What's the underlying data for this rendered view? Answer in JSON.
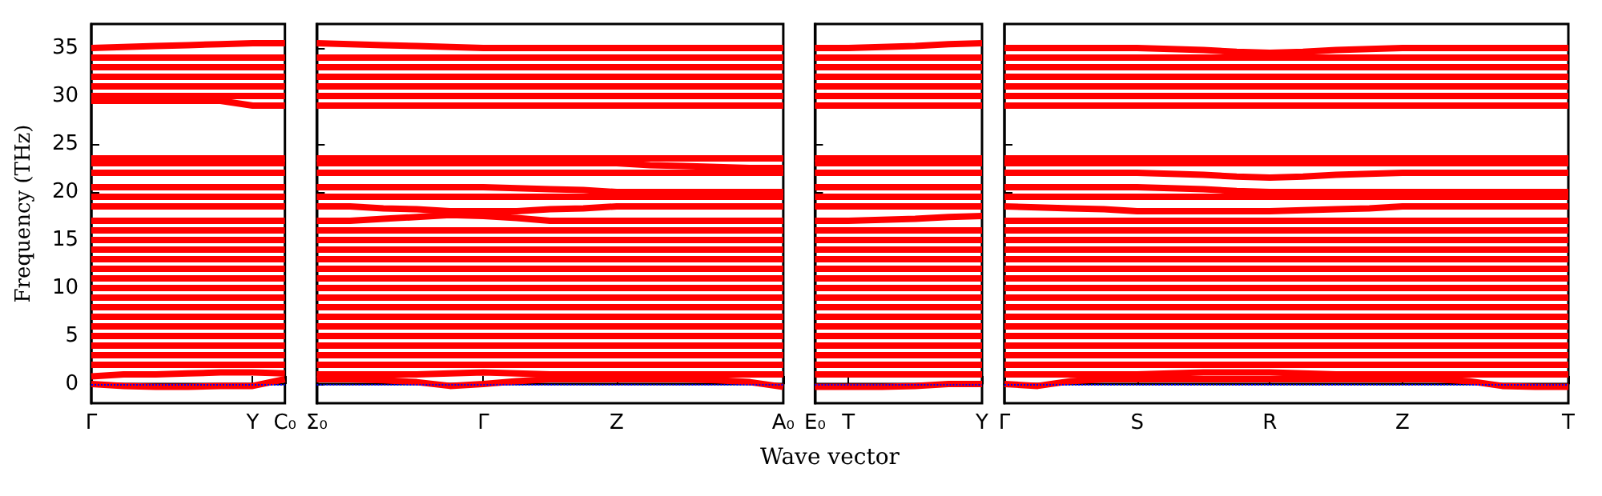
{
  "chart_data": [
    {
      "type": "line",
      "ylabel": "Frequency (THz)",
      "categories": [
        "Γ",
        null,
        null,
        null,
        null,
        "Y",
        "C₀"
      ],
      "ylim": [
        -2,
        37.5
      ],
      "yticks": [
        0,
        5,
        10,
        15,
        20,
        25,
        30,
        35
      ],
      "grid": false,
      "marker": "none",
      "line_style": "solid",
      "ref_lines": [
        {
          "axis": "y",
          "value": 0,
          "color": "#0000ff",
          "line_style": "dotted"
        }
      ],
      "series": [
        {
          "color": "#ff0000",
          "values": [
            0,
            -0.2,
            -0.3,
            -0.3,
            -0.2,
            -0.2,
            0.5
          ]
        },
        {
          "color": "#ff0000",
          "values": [
            0.8,
            1,
            1,
            1.1,
            1.2,
            1.2,
            1.1
          ]
        },
        {
          "color": "#ff0000",
          "values": [
            2,
            2,
            2,
            2,
            2,
            2,
            2
          ]
        },
        {
          "color": "#ff0000",
          "values": [
            3,
            3,
            3,
            3,
            3,
            3,
            3
          ]
        },
        {
          "color": "#ff0000",
          "values": [
            4,
            4,
            4,
            4,
            4,
            4,
            4
          ]
        },
        {
          "color": "#ff0000",
          "values": [
            5,
            5,
            5,
            5,
            5,
            5,
            5
          ]
        },
        {
          "color": "#ff0000",
          "values": [
            6,
            6,
            6,
            6,
            6,
            6,
            6
          ]
        },
        {
          "color": "#ff0000",
          "values": [
            7,
            7,
            7,
            7,
            7,
            7,
            7
          ]
        },
        {
          "color": "#ff0000",
          "values": [
            8,
            8,
            8,
            8,
            8,
            8,
            8
          ]
        },
        {
          "color": "#ff0000",
          "values": [
            9,
            9,
            9,
            9,
            9,
            9,
            9
          ]
        },
        {
          "color": "#ff0000",
          "values": [
            10,
            10,
            10,
            10,
            10,
            10,
            10
          ]
        },
        {
          "color": "#ff0000",
          "values": [
            11,
            11,
            11,
            11,
            11,
            11,
            11
          ]
        },
        {
          "color": "#ff0000",
          "values": [
            12,
            12,
            12,
            12,
            12,
            12,
            12
          ]
        },
        {
          "color": "#ff0000",
          "values": [
            13,
            13,
            13,
            13,
            13,
            13,
            13
          ]
        },
        {
          "color": "#ff0000",
          "values": [
            14,
            14,
            14,
            14,
            14,
            14,
            14
          ]
        },
        {
          "color": "#ff0000",
          "values": [
            15,
            15,
            15,
            15,
            15,
            15,
            15
          ]
        },
        {
          "color": "#ff0000",
          "values": [
            16,
            16,
            16,
            16,
            16,
            16,
            16
          ]
        },
        {
          "color": "#ff0000",
          "values": [
            17,
            17,
            17,
            17,
            17,
            17,
            17
          ]
        },
        {
          "color": "#ff0000",
          "values": [
            18.5,
            18.5,
            18.5,
            18.5,
            18.5,
            18.5,
            18.5
          ]
        },
        {
          "color": "#ff0000",
          "values": [
            19.5,
            19.5,
            19.5,
            19.5,
            19.5,
            19.5,
            19.5
          ]
        },
        {
          "color": "#ff0000",
          "values": [
            20.5,
            20.5,
            20.5,
            20.5,
            20.5,
            20.5,
            20.5
          ]
        },
        {
          "color": "#ff0000",
          "values": [
            22,
            22,
            22,
            22,
            22,
            22,
            22
          ]
        },
        {
          "color": "#ff0000",
          "values": [
            23,
            23,
            23,
            23,
            23,
            23,
            23
          ]
        },
        {
          "color": "#ff0000",
          "values": [
            23.5,
            23.5,
            23.5,
            23.5,
            23.5,
            23.5,
            23.5
          ]
        },
        {
          "color": "#ff0000",
          "values": [
            29.5,
            29.5,
            29.5,
            29.5,
            29.5,
            29,
            29
          ]
        },
        {
          "color": "#ff0000",
          "values": [
            30,
            30,
            30,
            30,
            30,
            30,
            30
          ]
        },
        {
          "color": "#ff0000",
          "values": [
            31,
            31,
            31,
            31,
            31,
            31,
            31
          ]
        },
        {
          "color": "#ff0000",
          "values": [
            32,
            32,
            32,
            32,
            32,
            32,
            32
          ]
        },
        {
          "color": "#ff0000",
          "values": [
            33,
            33,
            33,
            33,
            33,
            33,
            33
          ]
        },
        {
          "color": "#ff0000",
          "values": [
            34,
            34,
            34,
            34,
            34,
            34,
            34
          ]
        },
        {
          "color": "#ff0000",
          "values": [
            35,
            35.1,
            35.2,
            35.3,
            35.4,
            35.5,
            35.5
          ]
        }
      ]
    },
    {
      "type": "line",
      "categories": [
        "Σ₀",
        null,
        null,
        null,
        null,
        "Γ",
        null,
        null,
        null,
        "Z",
        null,
        null,
        null,
        null,
        "A₀"
      ],
      "ylim": [
        -2,
        37.5
      ],
      "yticks": [
        0,
        5,
        10,
        15,
        20,
        25,
        30,
        35
      ],
      "tick_labels": "x",
      "grid": false,
      "marker": "none",
      "line_style": "solid",
      "ref_lines": [
        {
          "axis": "y",
          "value": 0,
          "color": "#0000ff",
          "line_style": "dotted"
        }
      ],
      "series": [
        {
          "color": "#ff0000",
          "values": [
            0.5,
            0.5,
            0.4,
            0.2,
            -0.2,
            0,
            0.3,
            0.5,
            0.5,
            0.5,
            0.5,
            0.5,
            0.4,
            0.2,
            -0.3
          ]
        },
        {
          "color": "#ff0000",
          "values": [
            1,
            1,
            1,
            1,
            1.1,
            1.2,
            1.1,
            1,
            1,
            1,
            1,
            1,
            1,
            1,
            1
          ]
        },
        {
          "color": "#ff0000",
          "values": [
            2,
            2,
            2,
            2,
            2,
            2,
            2,
            2,
            2,
            2,
            2,
            2,
            2,
            2,
            2
          ]
        },
        {
          "color": "#ff0000",
          "values": [
            3,
            3,
            3,
            3,
            3,
            3,
            3,
            3,
            3,
            3,
            3,
            3,
            3,
            3,
            3
          ]
        },
        {
          "color": "#ff0000",
          "values": [
            4,
            4,
            4,
            4,
            4,
            4,
            4,
            4,
            4,
            4,
            4,
            4,
            4,
            4,
            4
          ]
        },
        {
          "color": "#ff0000",
          "values": [
            5,
            5,
            5,
            5,
            5,
            5,
            5,
            5,
            5,
            5,
            5,
            5,
            5,
            5,
            5
          ]
        },
        {
          "color": "#ff0000",
          "values": [
            6,
            6,
            6,
            6,
            6,
            6,
            6,
            6,
            6,
            6,
            6,
            6,
            6,
            6,
            6
          ]
        },
        {
          "color": "#ff0000",
          "values": [
            7,
            7,
            7,
            7,
            7,
            7,
            7,
            7,
            7,
            7,
            7,
            7,
            7,
            7,
            7
          ]
        },
        {
          "color": "#ff0000",
          "values": [
            8,
            8,
            8,
            8,
            8,
            8,
            8,
            8,
            8,
            8,
            8,
            8,
            8,
            8,
            8
          ]
        },
        {
          "color": "#ff0000",
          "values": [
            9,
            9,
            9,
            9,
            9,
            9,
            9,
            9,
            9,
            9,
            9,
            9,
            9,
            9,
            9
          ]
        },
        {
          "color": "#ff0000",
          "values": [
            10,
            10,
            10,
            10,
            10,
            10,
            10,
            10,
            10,
            10,
            10,
            10,
            10,
            10,
            10
          ]
        },
        {
          "color": "#ff0000",
          "values": [
            11,
            11,
            11,
            11,
            11,
            11,
            11,
            11,
            11,
            11,
            11,
            11,
            11,
            11,
            11
          ]
        },
        {
          "color": "#ff0000",
          "values": [
            12,
            12,
            12,
            12,
            12,
            12,
            12,
            12,
            12,
            12,
            12,
            12,
            12,
            12,
            12
          ]
        },
        {
          "color": "#ff0000",
          "values": [
            13,
            13,
            13,
            13,
            13,
            13,
            13,
            13,
            13,
            13,
            13,
            13,
            13,
            13,
            13
          ]
        },
        {
          "color": "#ff0000",
          "values": [
            14,
            14,
            14,
            14,
            14,
            14,
            14,
            14,
            14,
            14,
            14,
            14,
            14,
            14,
            14
          ]
        },
        {
          "color": "#ff0000",
          "values": [
            15,
            15,
            15,
            15,
            15,
            15,
            15,
            15,
            15,
            15,
            15,
            15,
            15,
            15,
            15
          ]
        },
        {
          "color": "#ff0000",
          "values": [
            16,
            16,
            16,
            16,
            16,
            16,
            16,
            16,
            16,
            16,
            16,
            16,
            16,
            16,
            16
          ]
        },
        {
          "color": "#ff0000",
          "values": [
            17,
            17,
            17.2,
            17.4,
            17.6,
            17.5,
            17.3,
            17,
            17,
            17,
            17,
            17,
            17,
            17,
            17
          ]
        },
        {
          "color": "#ff0000",
          "values": [
            18.5,
            18.5,
            18.3,
            18.2,
            18,
            18,
            18,
            18.2,
            18.3,
            18.5,
            18.5,
            18.5,
            18.5,
            18.5,
            18.5
          ]
        },
        {
          "color": "#ff0000",
          "values": [
            19.5,
            19.5,
            19.5,
            19.5,
            19.5,
            19.5,
            19.5,
            19.5,
            19.5,
            19.5,
            19.5,
            19.5,
            19.5,
            19.5,
            19.5
          ]
        },
        {
          "color": "#ff0000",
          "values": [
            20.5,
            20.5,
            20.5,
            20.5,
            20.5,
            20.5,
            20.4,
            20.3,
            20.2,
            20,
            20,
            20,
            20,
            20,
            20
          ]
        },
        {
          "color": "#ff0000",
          "values": [
            22,
            22,
            22,
            22,
            22,
            22,
            22,
            22,
            22,
            22,
            22,
            22,
            22,
            22,
            22
          ]
        },
        {
          "color": "#ff0000",
          "values": [
            23,
            23,
            23,
            23,
            23,
            23,
            23,
            23,
            23,
            23,
            22.8,
            22.7,
            22.6,
            22.5,
            22.5
          ]
        },
        {
          "color": "#ff0000",
          "values": [
            23.5,
            23.5,
            23.5,
            23.5,
            23.5,
            23.5,
            23.5,
            23.5,
            23.5,
            23.5,
            23.5,
            23.5,
            23.5,
            23.5,
            23.5
          ]
        },
        {
          "color": "#ff0000",
          "values": [
            29,
            29,
            29,
            29,
            29,
            29,
            29,
            29,
            29,
            29,
            29,
            29,
            29,
            29,
            29
          ]
        },
        {
          "color": "#ff0000",
          "values": [
            30,
            30,
            30,
            30,
            30,
            30,
            30,
            30,
            30,
            30,
            30,
            30,
            30,
            30,
            30
          ]
        },
        {
          "color": "#ff0000",
          "values": [
            31,
            31,
            31,
            31,
            31,
            31,
            31,
            31,
            31,
            31,
            31,
            31,
            31,
            31,
            31
          ]
        },
        {
          "color": "#ff0000",
          "values": [
            32,
            32,
            32,
            32,
            32,
            32,
            32,
            32,
            32,
            32,
            32,
            32,
            32,
            32,
            32
          ]
        },
        {
          "color": "#ff0000",
          "values": [
            33,
            33,
            33,
            33,
            33,
            33,
            33,
            33,
            33,
            33,
            33,
            33,
            33,
            33,
            33
          ]
        },
        {
          "color": "#ff0000",
          "values": [
            34,
            34,
            34,
            34,
            34,
            34,
            34,
            34,
            34,
            34,
            34,
            34,
            34,
            34,
            34
          ]
        },
        {
          "color": "#ff0000",
          "values": [
            35.5,
            35.4,
            35.3,
            35.2,
            35.1,
            35,
            35,
            35,
            35,
            35,
            35,
            35,
            35,
            35,
            35
          ]
        }
      ]
    },
    {
      "type": "line",
      "xlabel": "Wave vector",
      "categories": [
        "E₀",
        "T",
        null,
        null,
        null,
        "Y"
      ],
      "ylim": [
        -2,
        37.5
      ],
      "yticks": [
        0,
        5,
        10,
        15,
        20,
        25,
        30,
        35
      ],
      "tick_labels": "x",
      "grid": false,
      "marker": "none",
      "line_style": "solid",
      "ref_lines": [
        {
          "axis": "y",
          "value": 0,
          "color": "#0000ff",
          "line_style": "dotted"
        }
      ],
      "series": [
        {
          "color": "#ff0000",
          "values": [
            -0.3,
            -0.3,
            -0.3,
            -0.2,
            0,
            0
          ]
        },
        {
          "color": "#ff0000",
          "values": [
            1,
            1,
            1,
            1,
            1,
            1
          ]
        },
        {
          "color": "#ff0000",
          "values": [
            2,
            2,
            2,
            2,
            2,
            2
          ]
        },
        {
          "color": "#ff0000",
          "values": [
            3,
            3,
            3,
            3,
            3,
            3
          ]
        },
        {
          "color": "#ff0000",
          "values": [
            4,
            4,
            4,
            4,
            4,
            4
          ]
        },
        {
          "color": "#ff0000",
          "values": [
            5,
            5,
            5,
            5,
            5,
            5
          ]
        },
        {
          "color": "#ff0000",
          "values": [
            6,
            6,
            6,
            6,
            6,
            6
          ]
        },
        {
          "color": "#ff0000",
          "values": [
            7,
            7,
            7,
            7,
            7,
            7
          ]
        },
        {
          "color": "#ff0000",
          "values": [
            8,
            8,
            8,
            8,
            8,
            8
          ]
        },
        {
          "color": "#ff0000",
          "values": [
            9,
            9,
            9,
            9,
            9,
            9
          ]
        },
        {
          "color": "#ff0000",
          "values": [
            10,
            10,
            10,
            10,
            10,
            10
          ]
        },
        {
          "color": "#ff0000",
          "values": [
            11,
            11,
            11,
            11,
            11,
            11
          ]
        },
        {
          "color": "#ff0000",
          "values": [
            12,
            12,
            12,
            12,
            12,
            12
          ]
        },
        {
          "color": "#ff0000",
          "values": [
            13,
            13,
            13,
            13,
            13,
            13
          ]
        },
        {
          "color": "#ff0000",
          "values": [
            14,
            14,
            14,
            14,
            14,
            14
          ]
        },
        {
          "color": "#ff0000",
          "values": [
            15,
            15,
            15,
            15,
            15,
            15
          ]
        },
        {
          "color": "#ff0000",
          "values": [
            16,
            16,
            16,
            16,
            16,
            16
          ]
        },
        {
          "color": "#ff0000",
          "values": [
            17,
            17,
            17.1,
            17.2,
            17.4,
            17.5
          ]
        },
        {
          "color": "#ff0000",
          "values": [
            18.5,
            18.5,
            18.5,
            18.5,
            18.5,
            18.5
          ]
        },
        {
          "color": "#ff0000",
          "values": [
            19.5,
            19.5,
            19.5,
            19.5,
            19.5,
            19.5
          ]
        },
        {
          "color": "#ff0000",
          "values": [
            20.5,
            20.5,
            20.5,
            20.5,
            20.5,
            20.5
          ]
        },
        {
          "color": "#ff0000",
          "values": [
            22,
            22,
            22,
            22,
            22,
            22
          ]
        },
        {
          "color": "#ff0000",
          "values": [
            23,
            23,
            23,
            23,
            23,
            23
          ]
        },
        {
          "color": "#ff0000",
          "values": [
            23.5,
            23.5,
            23.5,
            23.5,
            23.5,
            23.5
          ]
        },
        {
          "color": "#ff0000",
          "values": [
            29,
            29,
            29,
            29,
            29,
            29
          ]
        },
        {
          "color": "#ff0000",
          "values": [
            30,
            30,
            30,
            30,
            30,
            30
          ]
        },
        {
          "color": "#ff0000",
          "values": [
            31,
            31,
            31,
            31,
            31,
            31
          ]
        },
        {
          "color": "#ff0000",
          "values": [
            32,
            32,
            32,
            32,
            32,
            32
          ]
        },
        {
          "color": "#ff0000",
          "values": [
            33,
            33,
            33,
            33,
            33,
            33
          ]
        },
        {
          "color": "#ff0000",
          "values": [
            34,
            34,
            34,
            34,
            34,
            34
          ]
        },
        {
          "color": "#ff0000",
          "values": [
            35,
            35,
            35.1,
            35.2,
            35.4,
            35.5
          ]
        }
      ]
    },
    {
      "type": "line",
      "categories": [
        "Γ",
        null,
        null,
        null,
        "S",
        null,
        null,
        null,
        "R",
        null,
        null,
        null,
        "Z",
        null,
        null,
        null,
        null,
        "T"
      ],
      "ylim": [
        -2,
        37.5
      ],
      "yticks": [
        0,
        5,
        10,
        15,
        20,
        25,
        30,
        35
      ],
      "tick_labels": "x",
      "grid": false,
      "marker": "none",
      "line_style": "solid",
      "ref_lines": [
        {
          "axis": "y",
          "value": 0,
          "color": "#0000ff",
          "line_style": "dotted"
        }
      ],
      "series": [
        {
          "color": "#ff0000",
          "values": [
            0,
            -0.2,
            0.3,
            0.5,
            0.5,
            0.5,
            0.5,
            0.5,
            0.5,
            0.5,
            0.5,
            0.5,
            0.5,
            0.5,
            0.3,
            -0.2,
            -0.3,
            -0.3
          ]
        },
        {
          "color": "#ff0000",
          "values": [
            1,
            1,
            1,
            1,
            1,
            1.1,
            1.2,
            1.2,
            1.2,
            1.1,
            1,
            1,
            1,
            1,
            1,
            1,
            1,
            1
          ]
        },
        {
          "color": "#ff0000",
          "values": [
            2,
            2,
            2,
            2,
            2,
            2,
            2,
            2,
            2,
            2,
            2,
            2,
            2,
            2,
            2,
            2,
            2,
            2
          ]
        },
        {
          "color": "#ff0000",
          "values": [
            3,
            3,
            3,
            3,
            3,
            3,
            3,
            3,
            3,
            3,
            3,
            3,
            3,
            3,
            3,
            3,
            3,
            3
          ]
        },
        {
          "color": "#ff0000",
          "values": [
            4,
            4,
            4,
            4,
            4,
            4,
            4,
            4,
            4,
            4,
            4,
            4,
            4,
            4,
            4,
            4,
            4,
            4
          ]
        },
        {
          "color": "#ff0000",
          "values": [
            5,
            5,
            5,
            5,
            5,
            5,
            5,
            5,
            5,
            5,
            5,
            5,
            5,
            5,
            5,
            5,
            5,
            5
          ]
        },
        {
          "color": "#ff0000",
          "values": [
            6,
            6,
            6,
            6,
            6,
            6,
            6,
            6,
            6,
            6,
            6,
            6,
            6,
            6,
            6,
            6,
            6,
            6
          ]
        },
        {
          "color": "#ff0000",
          "values": [
            7,
            7,
            7,
            7,
            7,
            7,
            7,
            7,
            7,
            7,
            7,
            7,
            7,
            7,
            7,
            7,
            7,
            7
          ]
        },
        {
          "color": "#ff0000",
          "values": [
            8,
            8,
            8,
            8,
            8,
            8,
            8,
            8,
            8,
            8,
            8,
            8,
            8,
            8,
            8,
            8,
            8,
            8
          ]
        },
        {
          "color": "#ff0000",
          "values": [
            9,
            9,
            9,
            9,
            9,
            9,
            9,
            9,
            9,
            9,
            9,
            9,
            9,
            9,
            9,
            9,
            9,
            9
          ]
        },
        {
          "color": "#ff0000",
          "values": [
            10,
            10,
            10,
            10,
            10,
            10,
            10,
            10,
            10,
            10,
            10,
            10,
            10,
            10,
            10,
            10,
            10,
            10
          ]
        },
        {
          "color": "#ff0000",
          "values": [
            11,
            11,
            11,
            11,
            11,
            11,
            11,
            11,
            11,
            11,
            11,
            11,
            11,
            11,
            11,
            11,
            11,
            11
          ]
        },
        {
          "color": "#ff0000",
          "values": [
            12,
            12,
            12,
            12,
            12,
            12,
            12,
            12,
            12,
            12,
            12,
            12,
            12,
            12,
            12,
            12,
            12,
            12
          ]
        },
        {
          "color": "#ff0000",
          "values": [
            13,
            13,
            13,
            13,
            13,
            13,
            13,
            13,
            13,
            13,
            13,
            13,
            13,
            13,
            13,
            13,
            13,
            13
          ]
        },
        {
          "color": "#ff0000",
          "values": [
            14,
            14,
            14,
            14,
            14,
            14,
            14,
            14,
            14,
            14,
            14,
            14,
            14,
            14,
            14,
            14,
            14,
            14
          ]
        },
        {
          "color": "#ff0000",
          "values": [
            15,
            15,
            15,
            15,
            15,
            15,
            15,
            15,
            15,
            15,
            15,
            15,
            15,
            15,
            15,
            15,
            15,
            15
          ]
        },
        {
          "color": "#ff0000",
          "values": [
            16,
            16,
            16,
            16,
            16,
            16,
            16,
            16,
            16,
            16,
            16,
            16,
            16,
            16,
            16,
            16,
            16,
            16
          ]
        },
        {
          "color": "#ff0000",
          "values": [
            17,
            17,
            17,
            17,
            17,
            17,
            17,
            17,
            17,
            17,
            17,
            17,
            17,
            17,
            17,
            17,
            17,
            17
          ]
        },
        {
          "color": "#ff0000",
          "values": [
            18.5,
            18.4,
            18.3,
            18.2,
            18,
            18,
            18,
            18,
            18,
            18.1,
            18.2,
            18.3,
            18.5,
            18.5,
            18.5,
            18.5,
            18.5,
            18.5
          ]
        },
        {
          "color": "#ff0000",
          "values": [
            19.5,
            19.5,
            19.5,
            19.5,
            19.5,
            19.5,
            19.5,
            19.5,
            19.5,
            19.5,
            19.5,
            19.5,
            19.5,
            19.5,
            19.5,
            19.5,
            19.5,
            19.5
          ]
        },
        {
          "color": "#ff0000",
          "values": [
            20.5,
            20.5,
            20.5,
            20.5,
            20.5,
            20.4,
            20.3,
            20.1,
            20,
            20,
            20,
            20,
            20,
            20,
            20,
            20,
            20,
            20
          ]
        },
        {
          "color": "#ff0000",
          "values": [
            22,
            22,
            22,
            22,
            22,
            21.9,
            21.8,
            21.6,
            21.5,
            21.6,
            21.8,
            21.9,
            22,
            22,
            22,
            22,
            22,
            22
          ]
        },
        {
          "color": "#ff0000",
          "values": [
            23,
            23,
            23,
            23,
            23,
            23,
            23,
            23,
            23,
            23,
            23,
            23,
            23,
            23,
            23,
            23,
            23,
            23
          ]
        },
        {
          "color": "#ff0000",
          "values": [
            23.5,
            23.5,
            23.5,
            23.5,
            23.5,
            23.5,
            23.5,
            23.5,
            23.5,
            23.5,
            23.5,
            23.5,
            23.5,
            23.5,
            23.5,
            23.5,
            23.5,
            23.5
          ]
        },
        {
          "color": "#ff0000",
          "values": [
            29,
            29,
            29,
            29,
            29,
            29,
            29,
            29,
            29,
            29,
            29,
            29,
            29,
            29,
            29,
            29,
            29,
            29
          ]
        },
        {
          "color": "#ff0000",
          "values": [
            30,
            30,
            30,
            30,
            30,
            30,
            30,
            30,
            30,
            30,
            30,
            30,
            30,
            30,
            30,
            30,
            30,
            30
          ]
        },
        {
          "color": "#ff0000",
          "values": [
            31,
            31,
            31,
            31,
            31,
            31,
            31,
            31,
            31,
            31,
            31,
            31,
            31,
            31,
            31,
            31,
            31,
            31
          ]
        },
        {
          "color": "#ff0000",
          "values": [
            32,
            32,
            32,
            32,
            32,
            32,
            32,
            32,
            32,
            32,
            32,
            32,
            32,
            32,
            32,
            32,
            32,
            32
          ]
        },
        {
          "color": "#ff0000",
          "values": [
            33,
            33,
            33,
            33,
            33,
            33,
            33,
            33,
            33,
            33,
            33,
            33,
            33,
            33,
            33,
            33,
            33,
            33
          ]
        },
        {
          "color": "#ff0000",
          "values": [
            34,
            34,
            34,
            34,
            34,
            34,
            34,
            34,
            34,
            34,
            34,
            34,
            34,
            34,
            34,
            34,
            34,
            34
          ]
        },
        {
          "color": "#ff0000",
          "values": [
            35,
            35,
            35,
            35,
            35,
            34.9,
            34.8,
            34.6,
            34.5,
            34.6,
            34.8,
            34.9,
            35,
            35,
            35,
            35,
            35,
            35
          ]
        }
      ]
    }
  ]
}
